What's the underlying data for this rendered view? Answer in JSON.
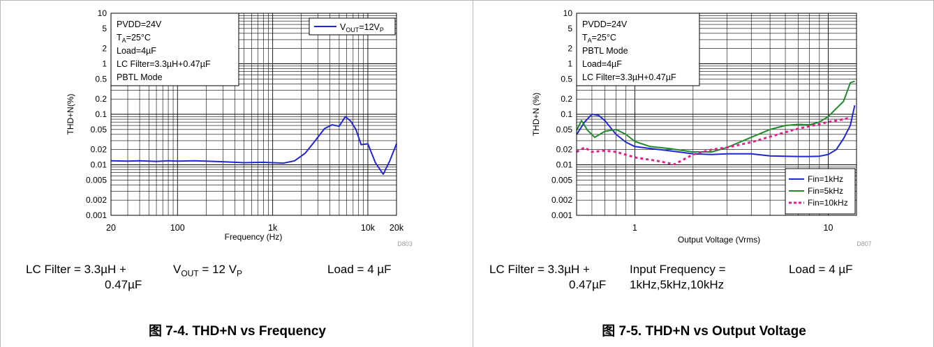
{
  "chart_data": [
    {
      "type": "line",
      "title": "图 7-4. THD+N vs Frequency",
      "xlabel": "Frequency (Hz)",
      "ylabel": "THD+N(%)",
      "x_scale": "log",
      "y_scale": "log",
      "xlim": [
        20,
        20000
      ],
      "ylim": [
        0.001,
        10
      ],
      "x_ticks": [
        20,
        100,
        1000,
        10000,
        20000
      ],
      "x_tick_labels": [
        "20",
        "100",
        "1k",
        "10k",
        "20k"
      ],
      "y_ticks": [
        0.001,
        0.002,
        0.005,
        0.01,
        0.02,
        0.05,
        0.1,
        0.2,
        0.5,
        1,
        2,
        5,
        10
      ],
      "y_tick_labels": [
        "0.001",
        "0.002",
        "0.005",
        "0.01",
        "0.02",
        "0.05",
        "0.1",
        "0.2",
        "0.5",
        "1",
        "2",
        "5",
        "10"
      ],
      "grid": true,
      "code": "D803",
      "conditions": [
        "PVDD=24V",
        "TA=25°C",
        "Load=4µF",
        "LC Filter=3.3µH+0.47µF",
        "PBTL Mode"
      ],
      "legend_position": "top-right",
      "series": [
        {
          "name": "VOUT=12VP",
          "color": "#1f26d6",
          "dash": "solid",
          "x": [
            20,
            30,
            40,
            60,
            80,
            100,
            150,
            200,
            300,
            500,
            800,
            1000,
            1300,
            1700,
            2200,
            2800,
            3500,
            4200,
            5000,
            5800,
            6600,
            7500,
            8500,
            10000,
            12000,
            14500,
            17000,
            20000
          ],
          "y": [
            0.012,
            0.0118,
            0.012,
            0.0117,
            0.012,
            0.0118,
            0.012,
            0.0118,
            0.0115,
            0.011,
            0.0112,
            0.011,
            0.0108,
            0.012,
            0.017,
            0.03,
            0.052,
            0.062,
            0.058,
            0.09,
            0.073,
            0.05,
            0.025,
            0.026,
            0.011,
            0.0065,
            0.012,
            0.026
          ]
        }
      ]
    },
    {
      "type": "line",
      "title": "图 7-5. THD+N vs Output Voltage",
      "xlabel": "Output Voltage (Vrms)",
      "ylabel": "THD+N (%)",
      "x_scale": "log",
      "y_scale": "log",
      "xlim": [
        0.5,
        14
      ],
      "ylim": [
        0.001,
        10
      ],
      "x_ticks": [
        1,
        10
      ],
      "x_tick_labels": [
        "1",
        "10"
      ],
      "y_ticks": [
        0.001,
        0.002,
        0.005,
        0.01,
        0.02,
        0.05,
        0.1,
        0.2,
        0.5,
        1,
        2,
        5,
        10
      ],
      "y_tick_labels": [
        "0.001",
        "0.002",
        "0.005",
        "0.01",
        "0.02",
        "0.05",
        "0.1",
        "0.2",
        "0.5",
        "1",
        "2",
        "5",
        "10"
      ],
      "grid": true,
      "code": "D807",
      "conditions": [
        "PVDD=24V",
        "TA=25°C",
        "PBTL Mode",
        "Load=4µF",
        "LC Filter=3.3µH+0.47µF"
      ],
      "legend_position": "bottom-right",
      "series": [
        {
          "name": "Fin=1kHz",
          "color": "#1f26d6",
          "dash": "solid",
          "x": [
            0.5,
            0.55,
            0.6,
            0.65,
            0.7,
            0.8,
            0.9,
            1.0,
            1.2,
            1.5,
            2.0,
            2.5,
            3.0,
            4.0,
            5.0,
            6.0,
            7.0,
            8.0,
            9.0,
            10.0,
            11.0,
            12.0,
            13.0,
            13.7
          ],
          "y": [
            0.04,
            0.07,
            0.1,
            0.095,
            0.075,
            0.04,
            0.028,
            0.023,
            0.021,
            0.019,
            0.0165,
            0.016,
            0.0165,
            0.0165,
            0.015,
            0.0148,
            0.0146,
            0.0146,
            0.0148,
            0.016,
            0.02,
            0.033,
            0.06,
            0.15
          ]
        },
        {
          "name": "Fin=5kHz",
          "color": "#1e8a2a",
          "dash": "solid",
          "x": [
            0.5,
            0.53,
            0.57,
            0.62,
            0.7,
            0.8,
            0.9,
            1.0,
            1.2,
            1.5,
            2.0,
            2.5,
            3.0,
            4.0,
            5.0,
            6.0,
            7.0,
            8.0,
            9.0,
            10.0,
            11.0,
            12.0,
            13.0,
            13.7
          ],
          "y": [
            0.048,
            0.075,
            0.048,
            0.035,
            0.046,
            0.05,
            0.04,
            0.029,
            0.023,
            0.021,
            0.018,
            0.018,
            0.022,
            0.035,
            0.05,
            0.06,
            0.063,
            0.062,
            0.07,
            0.09,
            0.13,
            0.18,
            0.42,
            0.45
          ]
        },
        {
          "name": "Fin=10kHz",
          "color": "#e0208f",
          "dash": "dotted",
          "x": [
            0.5,
            0.55,
            0.6,
            0.7,
            0.8,
            1.0,
            1.3,
            1.6,
            2.0,
            2.5,
            3.0,
            4.0,
            5.0,
            6.0,
            7.0,
            8.0,
            9.0,
            10.0,
            11.0,
            12.0,
            13.0
          ],
          "y": [
            0.018,
            0.022,
            0.018,
            0.019,
            0.018,
            0.014,
            0.012,
            0.0102,
            0.016,
            0.02,
            0.022,
            0.028,
            0.036,
            0.044,
            0.052,
            0.058,
            0.064,
            0.07,
            0.075,
            0.08,
            0.085
          ]
        }
      ]
    }
  ],
  "left": {
    "conditions": [
      "PVDD=24V",
      "25°C",
      "Load=4µF",
      "LC Filter=3.3µH+0.47µF",
      "PBTL Mode"
    ],
    "legend": "12V",
    "captions": {
      "lc_line1": "LC Filter = 3.3µH +",
      "lc_line2": "0.47µF",
      "vout": "= 12 V",
      "load": "Load = 4 µF"
    },
    "title": "图 7-4. THD+N vs Frequency"
  },
  "right": {
    "conditions": [
      "PVDD=24V",
      "25°C",
      "PBTL Mode",
      "Load=4µF",
      "LC Filter=3.3µH+0.47µF"
    ],
    "legend": [
      "Fin=1kHz",
      "Fin=5kHz",
      "Fin=10kHz"
    ],
    "captions": {
      "lc_line1": "LC Filter = 3.3µH +",
      "lc_line2": "0.47µF",
      "freq_line1": "Input Frequency =",
      "freq_line2": "1kHz,5kHz,10kHz",
      "load": "Load = 4 µF"
    },
    "title": "图 7-5. THD+N vs Output Voltage"
  }
}
